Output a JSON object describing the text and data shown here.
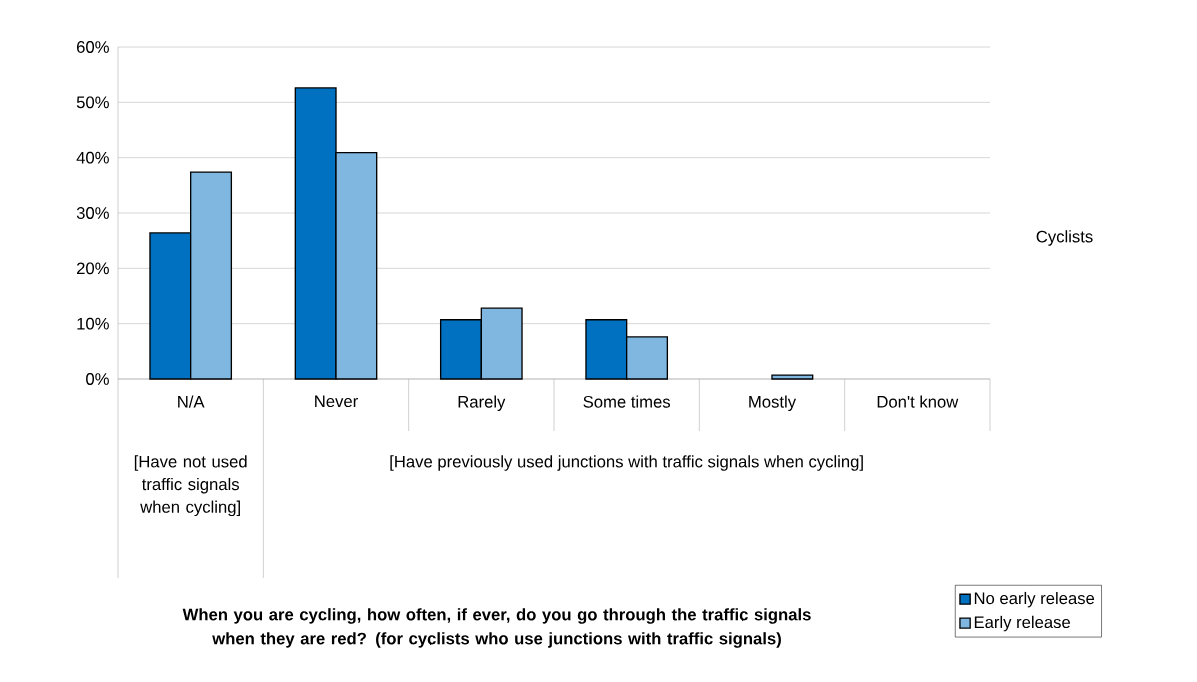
{
  "chart_data": {
    "type": "bar",
    "legend_title": "Cyclists",
    "categories": [
      "N/A",
      "Never",
      "Rarely",
      "Some times",
      "Mostly",
      "Don't know"
    ],
    "series": [
      {
        "name": "No early release",
        "color": "#0070c0",
        "values": [
          26.4,
          52.6,
          10.7,
          10.7,
          0,
          0
        ]
      },
      {
        "name": "Early release",
        "color": "#7fb7e0",
        "values": [
          37.4,
          40.9,
          12.8,
          7.6,
          0.7,
          0
        ]
      }
    ],
    "annotations": [
      "[Have not used traffic signals when cycling]",
      "[Have previously used junctions with traffic signals when cycling]",
      "When you are cycling, how often, if ever, do you go through the traffic signals when they are red? (for cyclists who use junctions with traffic signals)"
    ],
    "ylim": [
      0,
      60
    ],
    "yticks": [
      {
        "value": 0,
        "label": "0%"
      },
      {
        "value": 10,
        "label": "10%"
      },
      {
        "value": 20,
        "label": "20%"
      },
      {
        "value": 30,
        "label": "30%"
      },
      {
        "value": 40,
        "label": "40%"
      },
      {
        "value": 50,
        "label": "50%"
      },
      {
        "value": 60,
        "label": "60%"
      }
    ],
    "grid": "y",
    "legend": "bottom right"
  }
}
